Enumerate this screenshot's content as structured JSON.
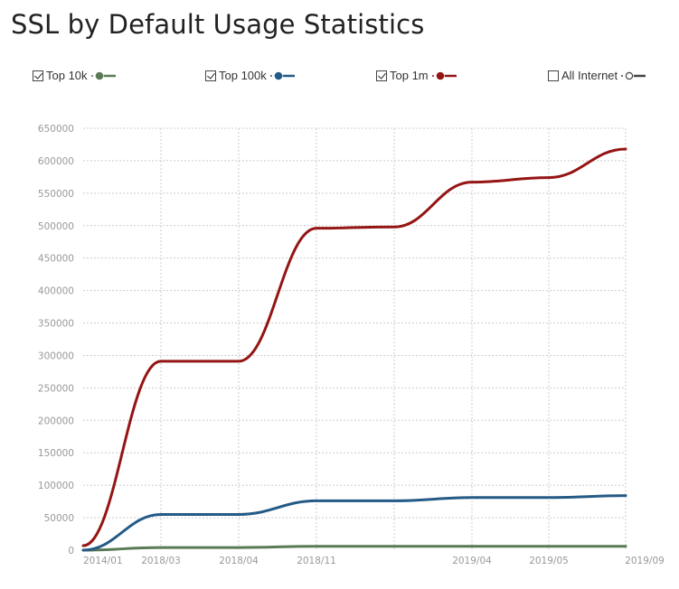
{
  "page": {
    "title": "SSL by Default Usage Statistics"
  },
  "legend": [
    {
      "label": "Top 10k",
      "checked": true,
      "color": "#5a7a55",
      "filled_marker": true
    },
    {
      "label": "Top 100k",
      "checked": true,
      "color": "#245a86",
      "filled_marker": true
    },
    {
      "label": "Top 1m",
      "checked": true,
      "color": "#951414",
      "filled_marker": true
    },
    {
      "label": "All Internet",
      "checked": false,
      "color": "#444444",
      "filled_marker": false
    }
  ],
  "chart_data": {
    "type": "line",
    "title": "SSL by Default Usage Statistics",
    "xlabel": "",
    "ylabel": "",
    "ylim": [
      0,
      650000
    ],
    "y_ticks": [
      0,
      50000,
      100000,
      150000,
      200000,
      250000,
      300000,
      350000,
      400000,
      450000,
      500000,
      550000,
      600000,
      650000
    ],
    "x_tick_labels": [
      "2014/01",
      "2018/03",
      "2018/04",
      "2018/11",
      "",
      "2019/04",
      "2019/05",
      "2019/09"
    ],
    "grid": true,
    "legend_position": "top",
    "series": [
      {
        "name": "Top 10k",
        "color": "#5a7a55",
        "values": [
          0,
          4000,
          4000,
          6000,
          6000,
          6000,
          6000,
          6000
        ]
      },
      {
        "name": "Top 100k",
        "color": "#245a86",
        "values": [
          0,
          55000,
          55000,
          76000,
          76000,
          81000,
          81000,
          84000
        ]
      },
      {
        "name": "Top 1m",
        "color": "#951414",
        "values": [
          7000,
          291000,
          291000,
          496000,
          498000,
          567000,
          574000,
          618000
        ]
      },
      {
        "name": "All Internet",
        "color": "#444444",
        "hidden": true,
        "values": []
      }
    ]
  }
}
